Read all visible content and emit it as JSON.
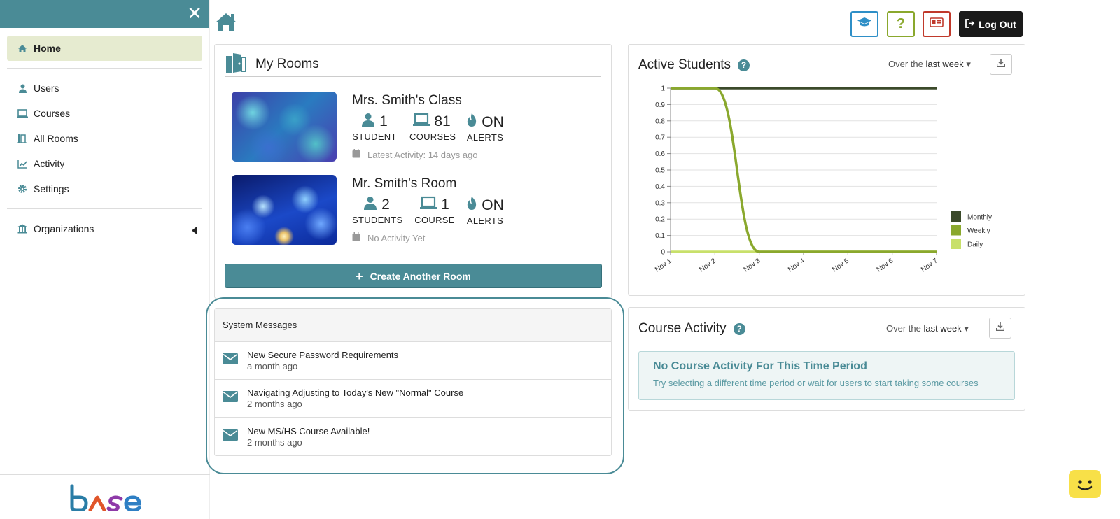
{
  "sidebar": {
    "close_label": "✕",
    "items": [
      {
        "label": "Home",
        "icon": "home-icon"
      },
      {
        "label": "Users",
        "icon": "user-icon"
      },
      {
        "label": "Courses",
        "icon": "laptop-icon"
      },
      {
        "label": "All Rooms",
        "icon": "door-icon"
      },
      {
        "label": "Activity",
        "icon": "chart-line-icon"
      },
      {
        "label": "Settings",
        "icon": "gear-icon"
      },
      {
        "label": "Organizations",
        "icon": "bank-icon"
      }
    ],
    "logo_text": "base"
  },
  "header": {
    "logout_label": "Log Out",
    "buttons": [
      "graduation-cap-icon",
      "question-icon",
      "id-card-icon"
    ],
    "colors": {
      "blue": "#2e8fc7",
      "green": "#8aa82d",
      "red": "#c0392b"
    }
  },
  "rooms": {
    "title": "My Rooms",
    "items": [
      {
        "name": "Mrs. Smith's Class",
        "students": "1",
        "students_label": "STUDENT",
        "courses": "81",
        "courses_label": "COURSES",
        "alerts": "ON",
        "alerts_label": "ALERTS",
        "activity": "Latest Activity: 14 days ago"
      },
      {
        "name": "Mr. Smith's Room",
        "students": "2",
        "students_label": "STUDENTS",
        "courses": "1",
        "courses_label": "COURSE",
        "alerts": "ON",
        "alerts_label": "ALERTS",
        "activity": "No Activity Yet"
      }
    ],
    "create_label": "Create Another Room"
  },
  "system_messages": {
    "title": "System Messages",
    "items": [
      {
        "title": "New Secure Password Requirements",
        "date": "a month ago"
      },
      {
        "title": "Navigating Adjusting to Today's New \"Normal\" Course",
        "date": "2 months ago"
      },
      {
        "title": "New MS/HS Course Available!",
        "date": "2 months ago"
      }
    ]
  },
  "active_students": {
    "title": "Active Students",
    "period_prefix": "Over the",
    "period_value": "last week"
  },
  "course_activity": {
    "title": "Course Activity",
    "period_prefix": "Over the",
    "period_value": "last week",
    "empty_title": "No Course Activity For This Time Period",
    "empty_text": "Try selecting a different time period or wait for users to start taking some courses"
  },
  "chart_data": {
    "type": "line",
    "x": [
      "Nov 1",
      "Nov 2",
      "Nov 3",
      "Nov 4",
      "Nov 5",
      "Nov 6",
      "Nov 7"
    ],
    "ylim": [
      0,
      1
    ],
    "yticks": [
      "0",
      "0.1",
      "0.2",
      "0.3",
      "0.4",
      "0.5",
      "0.6",
      "0.7",
      "0.8",
      "0.9",
      "1"
    ],
    "legend_position": "right",
    "series": [
      {
        "name": "Monthly",
        "color": "#3b4a2a",
        "values": [
          1,
          1,
          1,
          1,
          1,
          1,
          1
        ]
      },
      {
        "name": "Weekly",
        "color": "#8aa82d",
        "values": [
          1,
          1,
          0,
          0,
          0,
          0,
          0
        ]
      },
      {
        "name": "Daily",
        "color": "#c8e06a",
        "values": [
          0,
          0,
          0,
          0,
          0,
          0,
          0
        ]
      }
    ]
  }
}
